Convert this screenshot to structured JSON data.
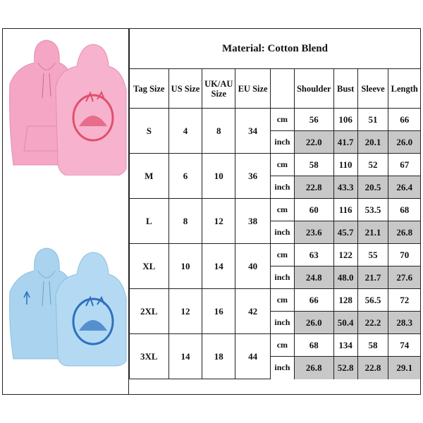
{
  "title": "Material: Cotton Blend",
  "headers": [
    "Tag Size",
    "US Size",
    "UK/AU Size",
    "EU Size",
    "",
    "Shoulder",
    "Bust",
    "Sleeve",
    "Length"
  ],
  "units": [
    "cm",
    "inch"
  ],
  "rows": [
    {
      "tag": "S",
      "us": "4",
      "uk": "8",
      "eu": "34",
      "cm": [
        "56",
        "106",
        "51",
        "66"
      ],
      "inch": [
        "22.0",
        "41.7",
        "20.1",
        "26.0"
      ]
    },
    {
      "tag": "M",
      "us": "6",
      "uk": "10",
      "eu": "36",
      "cm": [
        "58",
        "110",
        "52",
        "67"
      ],
      "inch": [
        "22.8",
        "43.3",
        "20.5",
        "26.4"
      ]
    },
    {
      "tag": "L",
      "us": "8",
      "uk": "12",
      "eu": "38",
      "cm": [
        "60",
        "116",
        "53.5",
        "68"
      ],
      "inch": [
        "23.6",
        "45.7",
        "21.1",
        "26.8"
      ]
    },
    {
      "tag": "XL",
      "us": "10",
      "uk": "14",
      "eu": "40",
      "cm": [
        "63",
        "122",
        "55",
        "70"
      ],
      "inch": [
        "24.8",
        "48.0",
        "21.7",
        "27.6"
      ]
    },
    {
      "tag": "2XL",
      "us": "12",
      "uk": "16",
      "eu": "42",
      "cm": [
        "66",
        "128",
        "56.5",
        "72"
      ],
      "inch": [
        "26.0",
        "50.4",
        "22.2",
        "28.3"
      ]
    },
    {
      "tag": "3XL",
      "us": "14",
      "uk": "18",
      "eu": "44",
      "cm": [
        "68",
        "134",
        "58",
        "74"
      ],
      "inch": [
        "26.8",
        "52.8",
        "22.8",
        "29.1"
      ]
    }
  ],
  "colors": {
    "pink_hoodie": "#f4a6c4",
    "pink_print": "#e0506e",
    "blue_hoodie": "#a9d3ee",
    "blue_print": "#2f6fc0",
    "inch_cell": "#c8c8c8"
  }
}
